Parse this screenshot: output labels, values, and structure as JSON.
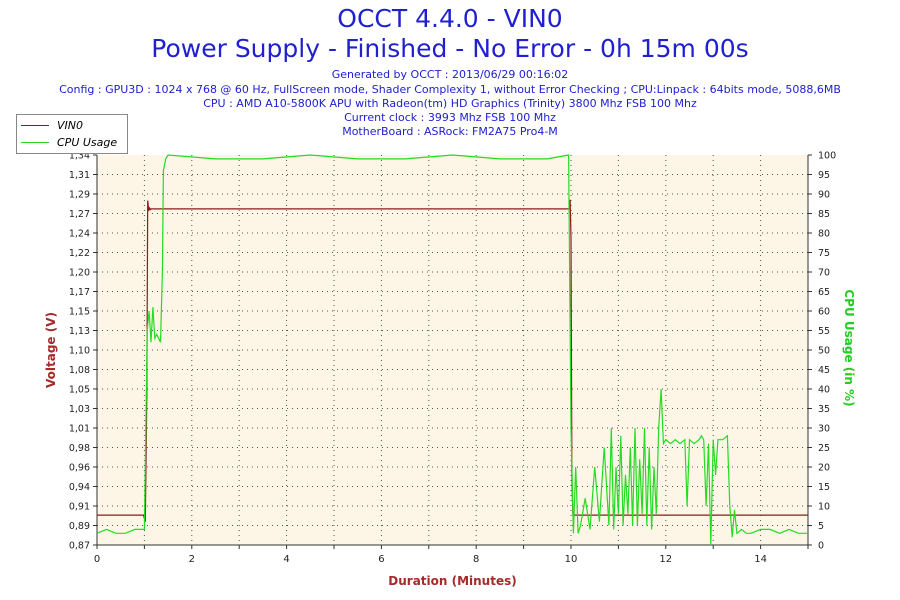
{
  "header": {
    "title": "OCCT 4.4.0 - VIN0",
    "subtitle": "Power Supply - Finished - No Error - 0h 15m 00s",
    "info": [
      "Generated by OCCT : 2013/06/29 00:16:02",
      "Config : GPU3D : 1024 x 768 @ 60 Hz, FullScreen mode, Shader Complexity 1, without Error Checking ; CPU:Linpack : 64bits mode, 5088,6MB",
      "CPU : AMD A10-5800K APU with Radeon(tm) HD Graphics (Trinity) 3800 Mhz FSB 100 Mhz",
      "Current clock : 3993 Mhz FSB 100 Mhz",
      "MotherBoard : ASRock: FM2A75 Pro4-M"
    ]
  },
  "colors": {
    "title": "#2020d0",
    "plot_bg": "#fdf5e6",
    "vin0": "#8b1a1a",
    "cpu": "#22dd22",
    "axis_label_left": "#a52a2a",
    "axis_label_right": "#22cc22",
    "axis_label_bottom": "#a52a2a"
  },
  "chart_data": {
    "type": "line",
    "grid": true,
    "legend_position": "top-left",
    "xlabel": "Duration (Minutes)",
    "ylabel": "Voltage (V)",
    "y2label": "CPU Usage (in %)",
    "xlim": [
      0,
      15
    ],
    "ylim": [
      0.87,
      1.34
    ],
    "y2lim": [
      0,
      100
    ],
    "xticks": [
      "0",
      "2",
      "4",
      "6",
      "8",
      "10",
      "12",
      "14"
    ],
    "yticks": [
      "0,87",
      "0,89",
      "0,91",
      "0,94",
      "0,96",
      "0,98",
      "1,01",
      "1,03",
      "1,05",
      "1,08",
      "1,10",
      "1,13",
      "1,15",
      "1,17",
      "1,20",
      "1,22",
      "1,24",
      "1,27",
      "1,29",
      "1,31",
      "1,34"
    ],
    "y2ticks": [
      "0",
      "5",
      "10",
      "15",
      "20",
      "25",
      "30",
      "35",
      "40",
      "45",
      "50",
      "55",
      "60",
      "65",
      "70",
      "75",
      "80",
      "85",
      "90",
      "95",
      "100"
    ],
    "series": [
      {
        "name": "VIN0",
        "axis": "left",
        "x": [
          0,
          0.98,
          1.02,
          1.05,
          1.07,
          1.09,
          1.11,
          1.12,
          1.14,
          1.3,
          9.96,
          9.98,
          10.0,
          10.02,
          10.04,
          10.1,
          15
        ],
        "y": [
          0.906,
          0.906,
          0.898,
          1.05,
          1.285,
          1.274,
          1.276,
          1.274,
          1.275,
          1.275,
          1.275,
          1.286,
          1.24,
          0.95,
          0.906,
          0.906,
          0.906
        ]
      },
      {
        "name": "CPU Usage",
        "axis": "right",
        "x": [
          0,
          0.2,
          0.4,
          0.6,
          0.8,
          1.0,
          1.06,
          1.1,
          1.14,
          1.18,
          1.22,
          1.26,
          1.3,
          1.34,
          1.38,
          1.4,
          1.45,
          1.5,
          2.5,
          3.5,
          4.5,
          5.5,
          6.5,
          7.5,
          8.5,
          9.5,
          9.95,
          10.0,
          10.05,
          10.1,
          10.15,
          10.2,
          10.3,
          10.4,
          10.5,
          10.6,
          10.7,
          10.8,
          10.85,
          10.9,
          10.95,
          11.0,
          11.05,
          11.1,
          11.15,
          11.2,
          11.25,
          11.3,
          11.35,
          11.4,
          11.45,
          11.5,
          11.55,
          11.6,
          11.65,
          11.7,
          11.75,
          11.8,
          11.85,
          11.9,
          11.95,
          12.0,
          12.1,
          12.2,
          12.3,
          12.4,
          12.45,
          12.5,
          12.6,
          12.7,
          12.75,
          12.8,
          12.85,
          12.9,
          12.95,
          13.0,
          13.05,
          13.1,
          13.2,
          13.3,
          13.35,
          13.4,
          13.45,
          13.5,
          13.6,
          13.7,
          13.8,
          14.0,
          14.2,
          14.4,
          14.6,
          14.8,
          15.0
        ],
        "y": [
          3,
          4,
          3,
          3,
          4,
          4,
          55,
          60,
          52,
          61,
          53,
          54,
          53,
          52,
          70,
          96,
          99,
          100,
          99,
          99,
          100,
          99,
          99,
          100,
          99,
          99,
          100,
          30,
          3,
          20,
          3,
          5,
          12,
          4,
          20,
          6,
          25,
          5,
          30,
          4,
          20,
          8,
          28,
          5,
          18,
          8,
          25,
          5,
          30,
          5,
          22,
          8,
          30,
          5,
          25,
          4,
          20,
          8,
          30,
          40,
          26,
          27,
          26,
          27,
          26,
          27,
          10,
          27,
          26,
          27,
          28,
          27,
          10,
          26,
          0,
          27,
          18,
          27,
          27,
          28,
          10,
          2,
          9,
          3,
          4,
          3,
          3,
          4,
          4,
          3,
          4,
          3,
          3
        ]
      }
    ]
  }
}
